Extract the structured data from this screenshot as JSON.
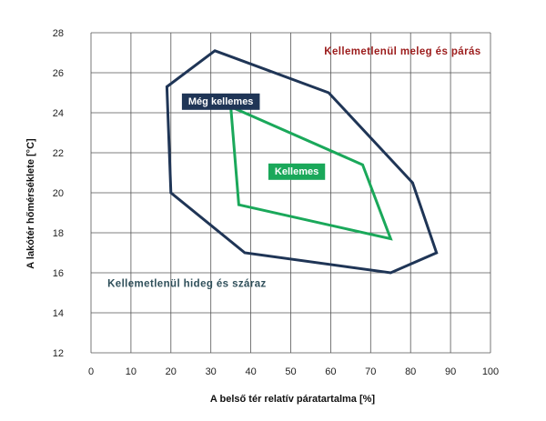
{
  "chart_data": {
    "type": "line",
    "xlabel": "A belső tér relatív páratartalma [%]",
    "ylabel": "A lakótér hőmérséklete [°C]",
    "xlim": [
      0,
      100
    ],
    "ylim": [
      12,
      28
    ],
    "x_ticks": [
      0,
      10,
      20,
      30,
      40,
      50,
      60,
      70,
      80,
      90,
      100
    ],
    "y_ticks": [
      12,
      14,
      16,
      18,
      20,
      22,
      24,
      26,
      28
    ],
    "grid": true,
    "series": [
      {
        "name": "Még kellemes",
        "color": "#1f3556",
        "closed": true,
        "points": [
          [
            31,
            27.1
          ],
          [
            59.5,
            25.0
          ],
          [
            80.5,
            20.5
          ],
          [
            86.5,
            17.0
          ],
          [
            75,
            16.0
          ],
          [
            38.5,
            17.0
          ],
          [
            20,
            20.0
          ],
          [
            19,
            25.3
          ]
        ]
      },
      {
        "name": "Kellemes",
        "color": "#1aa85a",
        "closed": true,
        "points": [
          [
            35,
            24.3
          ],
          [
            68,
            21.4
          ],
          [
            75,
            17.7
          ],
          [
            37,
            19.4
          ]
        ]
      }
    ],
    "annotations": [
      {
        "text": "Kellemetlenül meleg és párás",
        "x": 78,
        "y": 26.9,
        "color": "#9b1b1b",
        "type": "text"
      },
      {
        "text": "Kellemetlenül hideg és száraz",
        "x": 24,
        "y": 15.3,
        "color": "#2f4f5a",
        "type": "text"
      },
      {
        "text": "Még kellemes",
        "x": 32.5,
        "y": 24.6,
        "color": "#1f3556",
        "type": "box"
      },
      {
        "text": "Kellemes",
        "x": 51.5,
        "y": 21.1,
        "color": "#1aa85a",
        "type": "box"
      }
    ]
  }
}
